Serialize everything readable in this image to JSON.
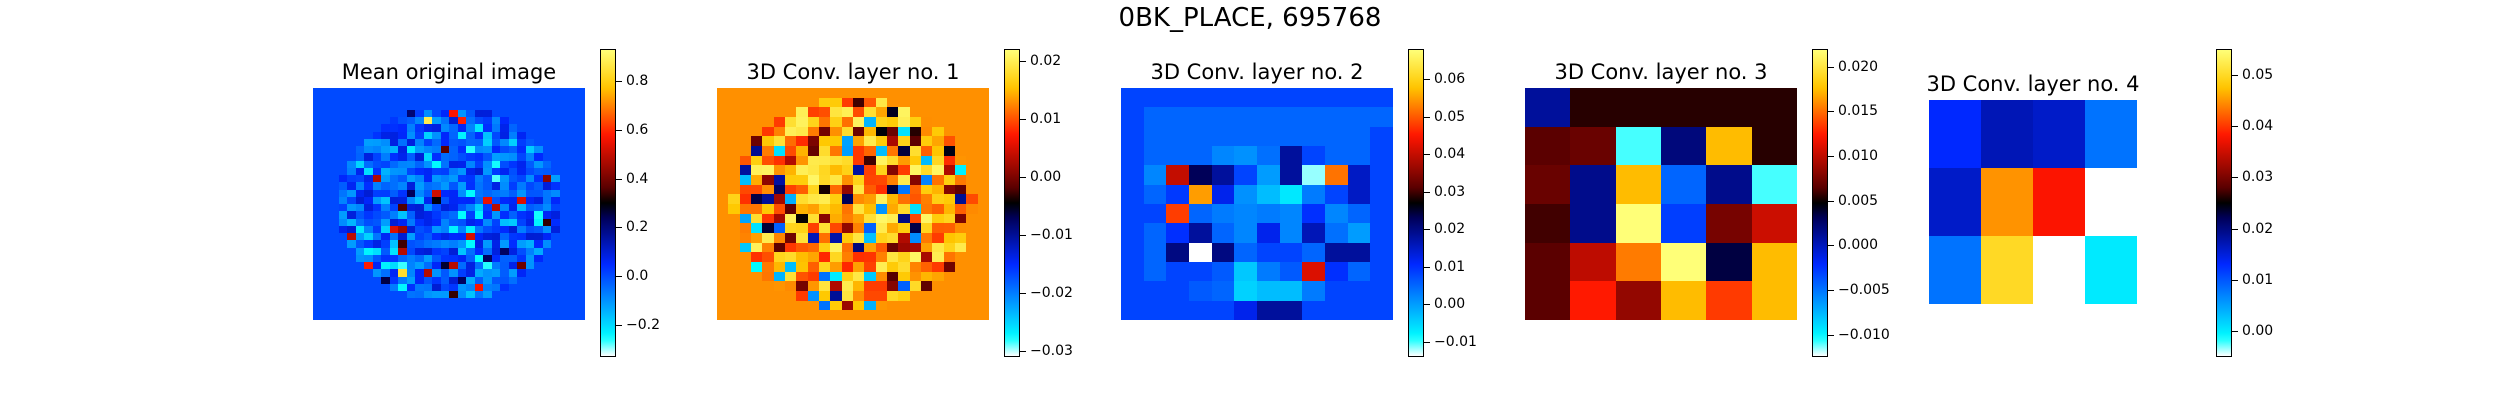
{
  "suptitle": "0BK_PLACE, 695768",
  "colormap": "jet-with-black-center",
  "chart_data": [
    {
      "type": "heatmap",
      "title": "Mean original image",
      "rows": 32,
      "cols": 32,
      "circular_mask": true,
      "background_value": 0.0,
      "colorbar": {
        "vmin": -0.33,
        "vmax": 0.93,
        "ticks": [
          -0.2,
          0.0,
          0.2,
          0.4,
          0.6,
          0.8
        ],
        "ticklabels": [
          "−0.2",
          "0.0",
          "0.2",
          "0.4",
          "0.6",
          "0.8"
        ]
      }
    },
    {
      "type": "heatmap",
      "title": "3D Conv. layer no. 1",
      "rows": 24,
      "cols": 24,
      "circular_mask": true,
      "background_value": 0.013,
      "colorbar": {
        "vmin": -0.031,
        "vmax": 0.022,
        "ticks": [
          -0.03,
          -0.02,
          -0.01,
          0.0,
          0.01,
          0.02
        ],
        "ticklabels": [
          "−0.03",
          "−0.02",
          "−0.01",
          "0.00",
          "0.01",
          "0.02"
        ]
      }
    },
    {
      "type": "heatmap",
      "title": "3D Conv. layer no. 2",
      "rows": 12,
      "cols": 12,
      "circular_mask": false,
      "colorbar": {
        "vmin": -0.014,
        "vmax": 0.068,
        "ticks": [
          -0.01,
          0.0,
          0.01,
          0.02,
          0.03,
          0.04,
          0.05,
          0.06
        ],
        "ticklabels": [
          "−0.01",
          "0.00",
          "0.01",
          "0.02",
          "0.03",
          "0.04",
          "0.05",
          "0.06"
        ]
      },
      "values": [
        [
          0.008,
          0.008,
          0.008,
          0.008,
          0.008,
          0.008,
          0.008,
          0.008,
          0.008,
          0.008,
          0.008,
          0.008
        ],
        [
          0.008,
          0.005,
          0.005,
          0.005,
          0.005,
          0.005,
          0.005,
          0.005,
          0.005,
          0.005,
          0.005,
          0.005
        ],
        [
          0.008,
          0.005,
          0.005,
          0.005,
          0.005,
          0.005,
          0.005,
          0.005,
          0.005,
          0.005,
          0.005,
          0.008
        ],
        [
          0.008,
          0.005,
          0.005,
          0.005,
          0.002,
          0.001,
          0.004,
          0.018,
          0.008,
          0.005,
          0.005,
          0.008
        ],
        [
          0.008,
          0.002,
          0.04,
          0.023,
          0.018,
          0.008,
          0.0,
          0.018,
          -0.012,
          0.052,
          0.015,
          0.008
        ],
        [
          0.008,
          0.005,
          0.009,
          0.055,
          0.012,
          0.001,
          -0.003,
          -0.007,
          0.003,
          0.008,
          0.015,
          0.008
        ],
        [
          0.008,
          0.008,
          0.048,
          0.005,
          0.003,
          0.002,
          0.003,
          0.002,
          0.01,
          0.002,
          0.005,
          0.008
        ],
        [
          0.008,
          0.005,
          0.01,
          0.018,
          0.005,
          0.002,
          0.012,
          0.002,
          0.016,
          0.004,
          0.0,
          0.008
        ],
        [
          0.008,
          0.005,
          0.02,
          -0.014,
          0.02,
          0.005,
          0.008,
          0.008,
          0.005,
          0.018,
          0.018,
          0.008
        ],
        [
          0.008,
          0.005,
          0.008,
          0.008,
          0.006,
          -0.004,
          0.003,
          0.006,
          0.042,
          0.01,
          0.005,
          0.008
        ],
        [
          0.008,
          0.008,
          0.008,
          0.006,
          0.005,
          -0.005,
          -0.003,
          -0.003,
          0.003,
          0.008,
          0.008,
          0.008
        ],
        [
          0.008,
          0.008,
          0.008,
          0.008,
          0.008,
          0.012,
          0.018,
          0.018,
          0.008,
          0.008,
          0.008,
          0.008
        ]
      ]
    },
    {
      "type": "heatmap",
      "title": "3D Conv. layer no. 3",
      "rows": 6,
      "cols": 6,
      "circular_mask": false,
      "colorbar": {
        "vmin": -0.0125,
        "vmax": 0.022,
        "ticks": [
          -0.01,
          -0.005,
          0.0,
          0.005,
          0.01,
          0.015,
          0.02
        ],
        "ticklabels": [
          "−0.010",
          "−0.005",
          "0.000",
          "0.005",
          "0.010",
          "0.015",
          "0.020"
        ]
      },
      "values": [
        [
          0.001,
          0.0055,
          0.0055,
          0.0055,
          0.0055,
          0.0055
        ],
        [
          0.0065,
          0.007,
          -0.011,
          0.002,
          0.0175,
          0.0055
        ],
        [
          0.007,
          0.0015,
          0.0175,
          -0.0045,
          0.0015,
          -0.011
        ],
        [
          0.006,
          0.0015,
          0.022,
          -0.003,
          0.0075,
          0.0105
        ],
        [
          0.0065,
          0.01,
          0.0155,
          0.022,
          0.0035,
          0.0175
        ],
        [
          0.0065,
          0.0125,
          0.0085,
          0.0175,
          0.0135,
          0.0175
        ]
      ]
    },
    {
      "type": "heatmap",
      "title": "3D Conv. layer no. 4",
      "rows": 3,
      "cols": 4,
      "circular_mask": false,
      "colorbar": {
        "vmin": -0.005,
        "vmax": 0.055,
        "ticks": [
          0.0,
          0.01,
          0.02,
          0.03,
          0.04,
          0.05
        ],
        "ticklabels": [
          "0.00",
          "0.01",
          "0.02",
          "0.03",
          "0.04",
          "0.05"
        ]
      },
      "values": [
        [
          0.013,
          0.017,
          0.016,
          0.008
        ],
        [
          0.016,
          0.045,
          0.038,
          null
        ],
        [
          0.008,
          0.05,
          null,
          0.0
        ]
      ]
    }
  ]
}
